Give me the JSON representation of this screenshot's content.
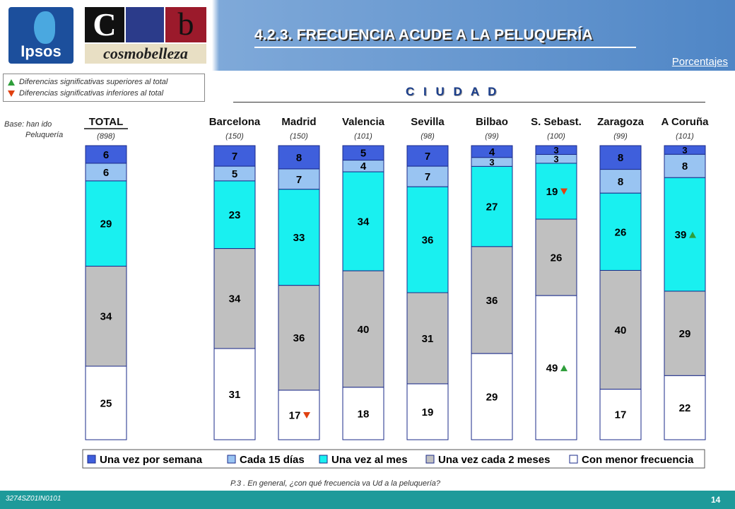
{
  "header": {
    "ipsos_logo_text": "Ipsos",
    "cb_logo_c": "C",
    "cb_logo_b": "b",
    "cb_logo_word": "cosmobelleza",
    "title": "4.2.3. FRECUENCIA ACUDE A LA PELUQUERÍA",
    "unit_label": "Porcentajes"
  },
  "legend_significance": {
    "up": "Diferencias significativas superiores al total",
    "down": "Diferencias significativas inferiores al total"
  },
  "group_label": "C I U D A D",
  "base_label_1": "Base: han ido",
  "base_label_2": "Peluquería",
  "chart_data": {
    "type": "bar",
    "stacked": true,
    "ylim": [
      0,
      100
    ],
    "categories": [
      "TOTAL",
      "Barcelona",
      "Madrid",
      "Valencia",
      "Sevilla",
      "Bilbao",
      "S. Sebast.",
      "Zaragoza",
      "A Coruña"
    ],
    "bases": [
      "(898)",
      "(150)",
      "(150)",
      "(101)",
      "(98)",
      "(99)",
      "(100)",
      "(99)",
      "(101)"
    ],
    "series": [
      {
        "name": "Una vez por semana",
        "color": "#3f5fdc",
        "values": [
          6,
          7,
          8,
          5,
          7,
          4,
          3,
          8,
          3
        ]
      },
      {
        "name": "Cada 15 días",
        "color": "#99c4f2",
        "values": [
          6,
          5,
          7,
          4,
          7,
          3,
          3,
          8,
          8
        ]
      },
      {
        "name": "Una vez al mes",
        "color": "#19f0f0",
        "values": [
          29,
          23,
          33,
          34,
          36,
          27,
          19,
          26,
          39
        ]
      },
      {
        "name": "Una vez cada 2 meses",
        "color": "#c0c0c0",
        "values": [
          34,
          34,
          36,
          40,
          31,
          36,
          26,
          40,
          29
        ]
      },
      {
        "name": "Con menor frecuencia",
        "color": "#ffffff",
        "values": [
          25,
          31,
          17,
          18,
          19,
          29,
          49,
          17,
          22
        ]
      }
    ],
    "significance": [
      {
        "category": "Madrid",
        "series": "Con menor frecuencia",
        "direction": "down"
      },
      {
        "category": "S. Sebast.",
        "series": "Una vez al mes",
        "direction": "down"
      },
      {
        "category": "S. Sebast.",
        "series": "Con menor frecuencia",
        "direction": "up"
      },
      {
        "category": "A Coruña",
        "series": "Una vez al mes",
        "direction": "up"
      }
    ],
    "colors": {
      "up": "#2e9e3a",
      "down": "#e04010"
    },
    "legend_position": "bottom"
  },
  "footer": {
    "question": "P.3 .    En general, ¿con qué frecuencia va Ud a la peluquería?",
    "study_code": "3274SZ01IN0101",
    "page_number": "14"
  }
}
